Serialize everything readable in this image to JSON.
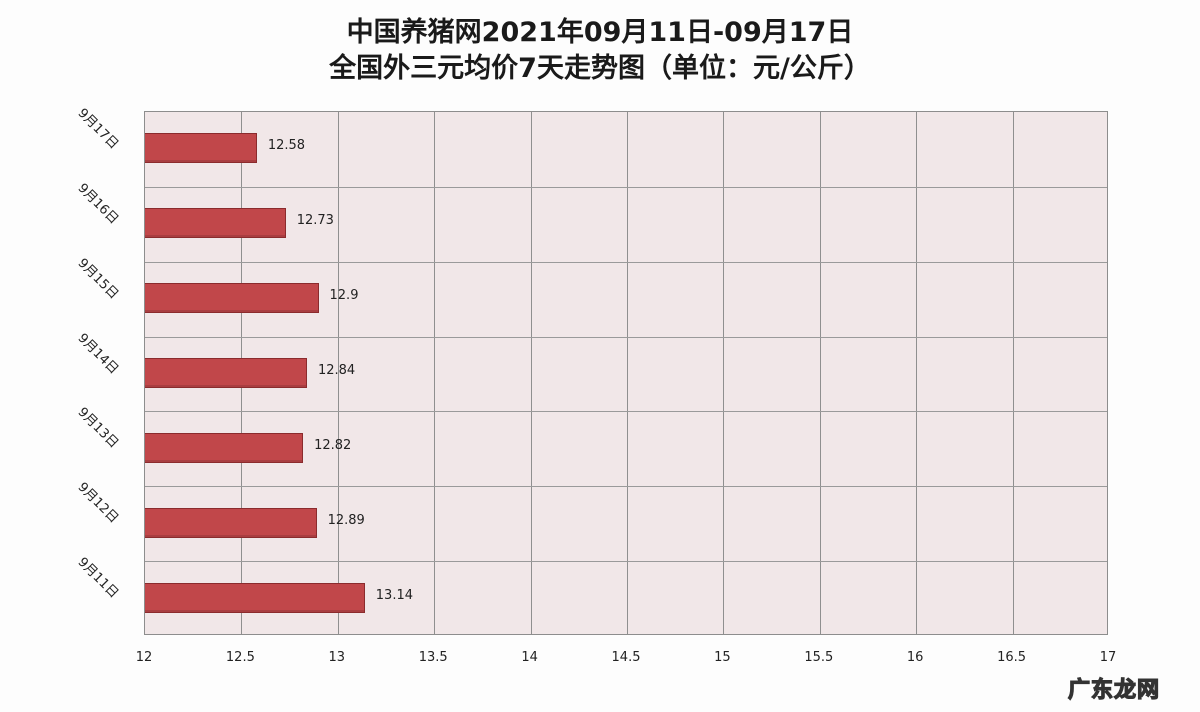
{
  "title": {
    "line1": "中国养猪网2021年09月11日-09月17日",
    "line2": "全国外三元均价7天走势图（单位：元/公斤）"
  },
  "watermark": "广东龙网",
  "colors": {
    "bar": "#c1474a",
    "bar_border": "#8b2b2d",
    "plot_bg": "#f1e7e8",
    "grid": "#8f8f8f"
  },
  "chart_data": {
    "type": "bar",
    "orientation": "horizontal",
    "title": "中国养猪网2021年09月11日-09月17日 全国外三元均价7天走势图（单位：元/公斤）",
    "categories": [
      "9月17日",
      "9月16日",
      "9月15日",
      "9月14日",
      "9月13日",
      "9月12日",
      "9月11日"
    ],
    "values": [
      12.58,
      12.73,
      12.9,
      12.84,
      12.82,
      12.89,
      13.14
    ],
    "value_labels": [
      "12.58",
      "12.73",
      "12.9",
      "12.84",
      "12.82",
      "12.89",
      "13.14"
    ],
    "xlabel": "",
    "ylabel": "",
    "xlim": [
      12,
      17
    ],
    "xticks": [
      "12",
      "12.5",
      "13",
      "13.5",
      "14",
      "14.5",
      "15",
      "15.5",
      "16",
      "16.5",
      "17"
    ],
    "grid": true,
    "legend": null
  }
}
